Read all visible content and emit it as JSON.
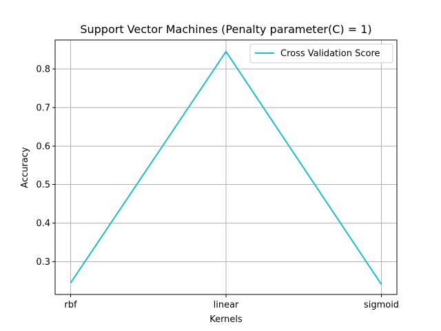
{
  "chart_data": {
    "type": "line",
    "title": "Support Vector Machines (Penalty parameter(C) = 1)",
    "xlabel": "Kernels",
    "ylabel": "Accuracy",
    "categories": [
      "rbf",
      "linear",
      "sigmoid"
    ],
    "series": [
      {
        "name": "Cross Validation Score",
        "values": [
          0.245,
          0.845,
          0.241
        ],
        "color": "#17becf"
      }
    ],
    "ylim": [
      0.215,
      0.875
    ],
    "yticks": [
      0.3,
      0.4,
      0.5,
      0.6,
      0.7,
      0.8
    ],
    "ytick_labels": [
      "0.3",
      "0.4",
      "0.5",
      "0.6",
      "0.7",
      "0.8"
    ],
    "grid": true,
    "legend_position": "top-right"
  }
}
